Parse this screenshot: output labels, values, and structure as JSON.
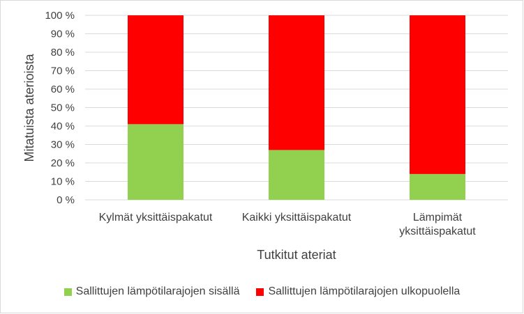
{
  "chart_data": {
    "type": "bar",
    "stacked": true,
    "percent": true,
    "categories": [
      [
        "Kylmät yksittäispakatut"
      ],
      [
        "Kaikki yksittäispakatut"
      ],
      [
        "Lämpimät",
        "yksittäispakatut"
      ]
    ],
    "series": [
      {
        "name": "Sallittujen lämpötilarajojen sisällä",
        "color": "#92d050",
        "values": [
          41,
          27,
          14
        ]
      },
      {
        "name": "Sallittujen lämpötilarajojen ulkopuolella",
        "color": "#ff0000",
        "values": [
          59,
          73,
          86
        ]
      }
    ],
    "ylabel": "Mitatuista aterioista",
    "xlabel": "Tutkitut ateriat",
    "ylim": [
      0,
      100
    ],
    "yticks": [
      "0 %",
      "10 %",
      "20 %",
      "30 %",
      "40 %",
      "50 %",
      "60 %",
      "70 %",
      "80 %",
      "90 %",
      "100 %"
    ],
    "grid": true,
    "legend_position": "bottom"
  }
}
